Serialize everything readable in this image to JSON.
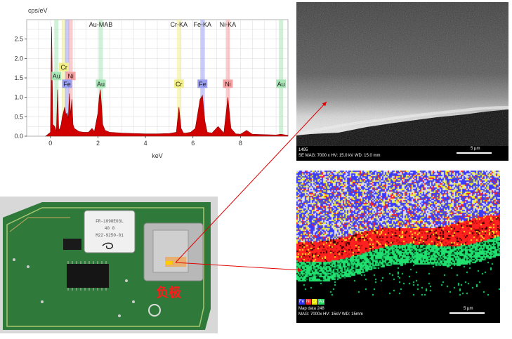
{
  "chart_data": {
    "type": "line",
    "title": "",
    "ylabel": "cps/eV",
    "xlabel": "keV",
    "xlim": [
      -1,
      10
    ],
    "ylim": [
      0,
      3
    ],
    "x_ticks": [
      "0",
      "2",
      "4",
      "6",
      "8"
    ],
    "y_ticks": [
      "0.0",
      "0.5",
      "1.0",
      "1.5",
      "2.0",
      "2.5"
    ],
    "grid": true,
    "series": [
      {
        "x": [
          -0.2,
          0.0,
          0.05,
          0.1,
          0.18,
          0.25,
          0.3,
          0.35,
          0.4,
          0.45,
          0.5,
          0.55,
          0.6,
          0.65,
          0.7,
          0.75,
          0.8,
          0.85,
          0.9,
          0.95,
          1.0,
          1.2,
          1.4,
          1.6,
          1.75,
          1.85,
          2.0,
          2.05,
          2.1,
          2.15,
          2.2,
          2.3,
          2.5,
          3.0,
          3.5,
          4.0,
          4.5,
          5.0,
          5.3,
          5.41,
          5.5,
          5.6,
          5.7,
          5.9,
          6.1,
          6.3,
          6.4,
          6.5,
          6.6,
          6.8,
          7.06,
          7.3,
          7.47,
          7.6,
          7.8,
          8.0,
          8.26,
          8.5,
          9.0,
          9.5,
          9.7,
          10.0
        ],
        "y": [
          0.0,
          0.1,
          2.82,
          0.3,
          0.25,
          0.12,
          1.2,
          0.15,
          0.2,
          0.3,
          0.5,
          0.62,
          0.75,
          0.55,
          0.6,
          0.45,
          1.1,
          0.55,
          0.95,
          0.3,
          0.2,
          0.12,
          0.1,
          0.1,
          0.2,
          0.12,
          0.6,
          1.0,
          1.2,
          0.8,
          0.3,
          0.15,
          0.1,
          0.08,
          0.07,
          0.06,
          0.06,
          0.07,
          0.1,
          0.75,
          0.2,
          0.08,
          0.08,
          0.1,
          0.2,
          0.95,
          1.05,
          0.4,
          0.1,
          0.08,
          0.25,
          0.08,
          1.0,
          0.2,
          0.06,
          0.05,
          0.15,
          0.05,
          0.04,
          0.03,
          0.05,
          0.02
        ]
      }
    ],
    "line_labels": [
      {
        "text": "Au-MAB",
        "x": 2.12
      },
      {
        "text": "Cr-KA",
        "x": 5.41
      },
      {
        "text": "Fe-KA",
        "x": 6.4
      },
      {
        "text": "Ni-KA",
        "x": 7.47
      }
    ],
    "element_tags": [
      {
        "text": "Au",
        "x": 2.12,
        "y": 1.35,
        "color": "#a8e6b8"
      },
      {
        "text": "Cr",
        "x": 5.41,
        "y": 1.35,
        "color": "#f2ee8a"
      },
      {
        "text": "Fe",
        "x": 6.4,
        "y": 1.35,
        "color": "#9a9ef0"
      },
      {
        "text": "Ni",
        "x": 7.47,
        "y": 1.35,
        "color": "#f4a4a4"
      },
      {
        "text": "Au",
        "x": 9.71,
        "y": 1.35,
        "color": "#a8e6b8"
      },
      {
        "text": "Cr",
        "x": 0.57,
        "y": 1.78,
        "color": "#f2ee8a"
      },
      {
        "text": "Au",
        "x": 0.25,
        "y": 1.55,
        "color": "#a8e6b8"
      },
      {
        "text": "Ni",
        "x": 0.85,
        "y": 1.55,
        "color": "#f4a4a4"
      },
      {
        "text": "Fe",
        "x": 0.7,
        "y": 1.35,
        "color": "#9a9ef0"
      }
    ]
  },
  "sem_image": {
    "label_id": "1495",
    "info": "SE  MAG: 7000 x  HV: 15.0 kV  WD: 15.0 mm",
    "scale_label": "5 µm"
  },
  "eds_map": {
    "legend": [
      {
        "text": "Fe",
        "color": "#3030ff"
      },
      {
        "text": "Ni",
        "color": "#ff2020"
      },
      {
        "text": "Cr",
        "color": "#e8e800"
      },
      {
        "text": "Au",
        "color": "#20e060"
      }
    ],
    "title": "Map data 248",
    "info": "MAG: 7000x  HV: 15kV  WD: 15mm",
    "scale_label": "5 µm"
  },
  "pcb_photo": {
    "label": "负极",
    "label_color": "#ff1a1a",
    "chip_text": [
      "FR-1098E03L",
      "40  0",
      "M22-9250-01"
    ]
  },
  "colors": {
    "spectrum_fill": "#d10000",
    "arrow": "#e00000",
    "line_highlight": "#9ab8f0"
  }
}
